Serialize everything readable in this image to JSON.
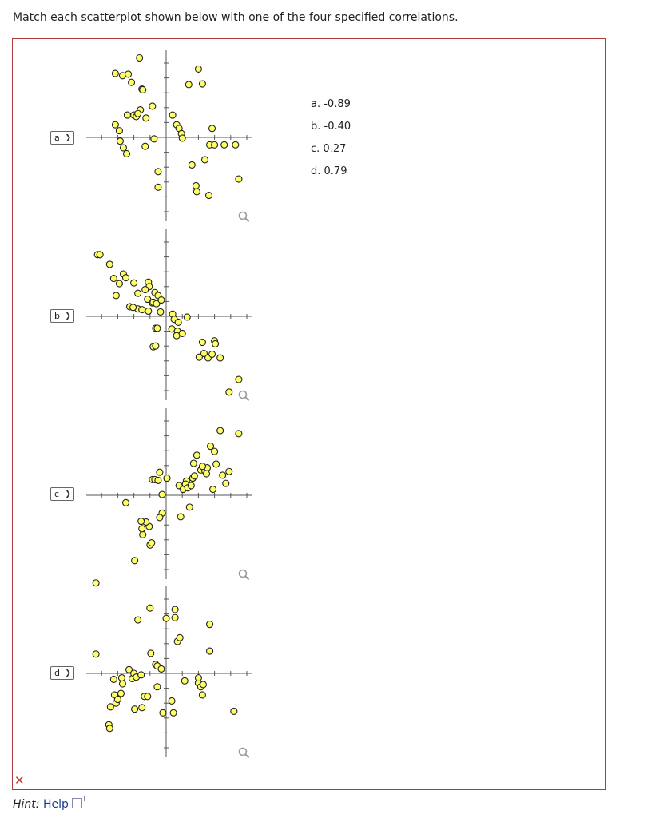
{
  "question": "Match each scatterplot shown below with one of the four specified correlations.",
  "options": [
    "a. -0.89",
    "b. -0.40",
    "c. 0.27",
    "d. 0.79"
  ],
  "hint": {
    "label": "Hint:",
    "link": "Help"
  },
  "status": {
    "mark": "✕",
    "color": "#c0392b"
  },
  "colors": {
    "point_fill": "#ffff66",
    "point_stroke": "#222222",
    "axis": "#555555",
    "frame": "#b33a3a"
  },
  "chart_data": [
    {
      "type": "scatter",
      "selected": "a",
      "icon": "magnifier-icon",
      "points": [
        [
          -6.3,
          8.6
        ],
        [
          -5.4,
          8.3
        ],
        [
          -4.7,
          8.5
        ],
        [
          -4.3,
          7.4
        ],
        [
          -3.3,
          10.7
        ],
        [
          -3.0,
          6.5
        ],
        [
          -2.9,
          6.4
        ],
        [
          -3.2,
          3.7
        ],
        [
          -4.0,
          3.0
        ],
        [
          -3.7,
          2.8
        ],
        [
          -3.5,
          3.2
        ],
        [
          -4.8,
          3.0
        ],
        [
          -6.3,
          1.7
        ],
        [
          -1.7,
          4.2
        ],
        [
          -1.5,
          -0.2
        ],
        [
          -2.5,
          2.6
        ],
        [
          -5.7,
          -0.5
        ],
        [
          -5.8,
          0.9
        ],
        [
          -4.9,
          -2.2
        ],
        [
          -5.3,
          -1.4
        ],
        [
          -2.6,
          -1.2
        ],
        [
          0.8,
          3.0
        ],
        [
          1.3,
          1.7
        ],
        [
          1.6,
          1.2
        ],
        [
          1.9,
          0.5
        ],
        [
          2.0,
          -0.1
        ],
        [
          2.8,
          7.1
        ],
        [
          4.0,
          9.2
        ],
        [
          4.5,
          7.2
        ],
        [
          5.7,
          1.2
        ],
        [
          5.4,
          -1.0
        ],
        [
          4.8,
          -3.0
        ],
        [
          6.0,
          -1.0
        ],
        [
          8.6,
          -1.0
        ],
        [
          7.2,
          -1.0
        ],
        [
          3.2,
          -3.7
        ],
        [
          3.7,
          -6.5
        ],
        [
          -1.0,
          -6.7
        ],
        [
          -1.0,
          -4.6
        ],
        [
          3.8,
          -7.3
        ],
        [
          5.3,
          -7.8
        ],
        [
          9.0,
          -5.6
        ]
      ]
    },
    {
      "type": "scatter",
      "selected": "b",
      "icon": "magnifier-icon",
      "points": [
        [
          -8.5,
          8.3
        ],
        [
          -8.2,
          8.3
        ],
        [
          -7.0,
          7.0
        ],
        [
          -5.3,
          5.7
        ],
        [
          -5.0,
          5.2
        ],
        [
          -6.5,
          5.1
        ],
        [
          -5.8,
          4.4
        ],
        [
          -4.0,
          4.5
        ],
        [
          -2.2,
          4.6
        ],
        [
          -2.1,
          4.0
        ],
        [
          -2.6,
          3.6
        ],
        [
          -3.5,
          3.1
        ],
        [
          -1.4,
          3.2
        ],
        [
          -1.0,
          2.8
        ],
        [
          -6.2,
          2.8
        ],
        [
          -2.3,
          2.3
        ],
        [
          -1.7,
          1.8
        ],
        [
          -1.6,
          1.9
        ],
        [
          -1.2,
          1.7
        ],
        [
          -0.6,
          2.2
        ],
        [
          -3.5,
          1.0
        ],
        [
          -4.5,
          1.3
        ],
        [
          -4.1,
          1.2
        ],
        [
          -3.0,
          0.9
        ],
        [
          -2.2,
          0.7
        ],
        [
          -0.7,
          0.6
        ],
        [
          -1.3,
          -1.6
        ],
        [
          -1.1,
          -1.6
        ],
        [
          0.8,
          0.3
        ],
        [
          1.0,
          -0.4
        ],
        [
          1.5,
          -0.8
        ],
        [
          2.6,
          -0.1
        ],
        [
          0.7,
          -1.7
        ],
        [
          1.4,
          -2.0
        ],
        [
          1.3,
          -2.6
        ],
        [
          2.0,
          -2.3
        ],
        [
          -1.6,
          -4.1
        ],
        [
          -1.3,
          -4.0
        ],
        [
          4.5,
          -3.5
        ],
        [
          6.0,
          -3.3
        ],
        [
          6.1,
          -3.7
        ],
        [
          4.1,
          -5.5
        ],
        [
          4.7,
          -5.0
        ],
        [
          5.2,
          -5.6
        ],
        [
          5.7,
          -5.1
        ],
        [
          6.7,
          -5.6
        ],
        [
          9.0,
          -8.5
        ],
        [
          7.8,
          -10.2
        ]
      ]
    },
    {
      "type": "scatter",
      "selected": "c",
      "icon": "magnifier-icon",
      "points": [
        [
          -8.7,
          -11.8
        ],
        [
          -5.0,
          -1.0
        ],
        [
          -3.9,
          -8.8
        ],
        [
          -2.9,
          -5.3
        ],
        [
          -2.0,
          -6.7
        ],
        [
          -1.8,
          -6.4
        ],
        [
          -2.1,
          -4.2
        ],
        [
          -2.5,
          -3.6
        ],
        [
          -3.1,
          -3.5
        ],
        [
          -3.0,
          -4.5
        ],
        [
          -1.7,
          2.1
        ],
        [
          -1.4,
          2.1
        ],
        [
          -1.0,
          2.0
        ],
        [
          -0.8,
          3.1
        ],
        [
          -0.5,
          -2.4
        ],
        [
          -0.8,
          -3.0
        ],
        [
          0.1,
          2.3
        ],
        [
          -0.5,
          0.1
        ],
        [
          1.8,
          -2.9
        ],
        [
          1.6,
          1.3
        ],
        [
          2.1,
          0.8
        ],
        [
          2.5,
          1.9
        ],
        [
          2.4,
          1.5
        ],
        [
          2.7,
          1.0
        ],
        [
          3.1,
          1.3
        ],
        [
          3.3,
          2.3
        ],
        [
          3.5,
          2.6
        ],
        [
          2.9,
          -1.6
        ],
        [
          3.4,
          4.3
        ],
        [
          3.8,
          5.4
        ],
        [
          4.3,
          3.4
        ],
        [
          4.8,
          3.3
        ],
        [
          5.1,
          3.7
        ],
        [
          5.0,
          2.9
        ],
        [
          4.5,
          3.9
        ],
        [
          6.0,
          5.9
        ],
        [
          6.2,
          4.2
        ],
        [
          5.5,
          6.6
        ],
        [
          5.8,
          0.8
        ],
        [
          7.0,
          2.7
        ],
        [
          7.4,
          1.6
        ],
        [
          7.8,
          3.2
        ],
        [
          9.0,
          8.3
        ],
        [
          6.7,
          8.7
        ]
      ]
    },
    {
      "type": "scatter",
      "selected": "d",
      "icon": "magnifier-icon",
      "points": [
        [
          -8.7,
          2.6
        ],
        [
          -7.1,
          -6.9
        ],
        [
          -7.0,
          -7.4
        ],
        [
          -6.9,
          -4.5
        ],
        [
          -6.2,
          -4.0
        ],
        [
          -6.4,
          -2.9
        ],
        [
          -6.0,
          -3.5
        ],
        [
          -5.6,
          -2.7
        ],
        [
          -5.4,
          -1.4
        ],
        [
          -5.5,
          -0.6
        ],
        [
          -6.5,
          -0.8
        ],
        [
          -4.6,
          0.5
        ],
        [
          -4.2,
          -0.7
        ],
        [
          -4.0,
          0.0
        ],
        [
          -3.7,
          -0.5
        ],
        [
          -3.1,
          -0.2
        ],
        [
          -3.0,
          -4.6
        ],
        [
          -3.9,
          -4.8
        ],
        [
          -2.7,
          -3.1
        ],
        [
          -2.3,
          -3.1
        ],
        [
          -1.9,
          2.7
        ],
        [
          -1.3,
          1.2
        ],
        [
          -1.1,
          1.0
        ],
        [
          -0.6,
          0.6
        ],
        [
          -1.1,
          -1.8
        ],
        [
          -0.4,
          -5.3
        ],
        [
          -2.0,
          8.8
        ],
        [
          -3.5,
          7.2
        ],
        [
          0.0,
          7.4
        ],
        [
          1.1,
          7.5
        ],
        [
          1.1,
          8.6
        ],
        [
          1.4,
          4.3
        ],
        [
          1.7,
          4.8
        ],
        [
          0.7,
          -3.7
        ],
        [
          0.9,
          -5.3
        ],
        [
          2.3,
          -1.0
        ],
        [
          4.0,
          -1.3
        ],
        [
          4.3,
          -1.8
        ],
        [
          4.6,
          -1.5
        ],
        [
          4.0,
          -0.6
        ],
        [
          4.5,
          -2.9
        ],
        [
          5.4,
          6.6
        ],
        [
          5.4,
          3.0
        ],
        [
          8.4,
          -5.1
        ]
      ]
    }
  ]
}
